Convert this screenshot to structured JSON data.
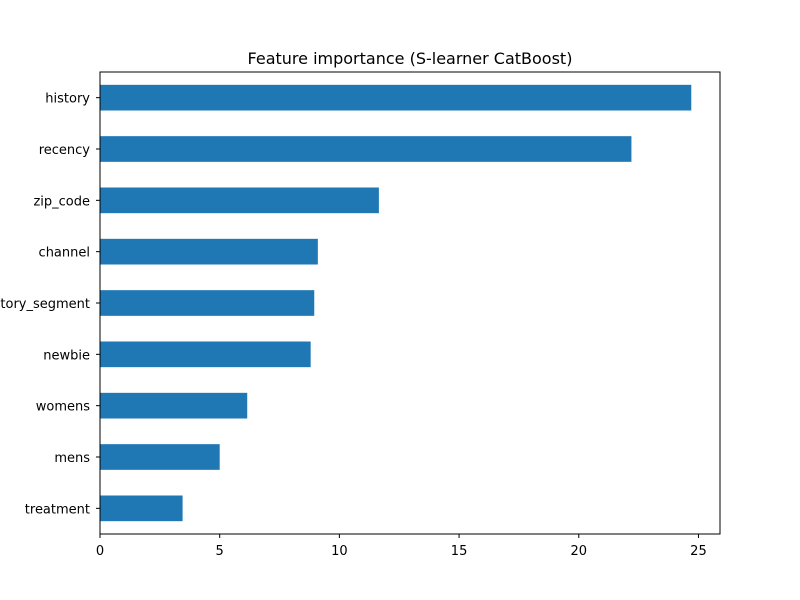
{
  "chart_data": {
    "type": "bar",
    "orientation": "horizontal",
    "title": "Feature importance (S-learner CatBoost)",
    "xlabel": "",
    "ylabel": "",
    "categories": [
      "history",
      "recency",
      "zip_code",
      "channel",
      "history_segment",
      "newbie",
      "womens",
      "mens",
      "treatment"
    ],
    "values": [
      24.7,
      22.2,
      11.65,
      9.1,
      8.95,
      8.8,
      6.15,
      5.0,
      3.45
    ],
    "xlim": [
      0,
      25.9
    ],
    "xticks": [
      0,
      5,
      10,
      15,
      20,
      25
    ],
    "grid": false,
    "legend": "none",
    "bar_color": "#1f77b4"
  }
}
